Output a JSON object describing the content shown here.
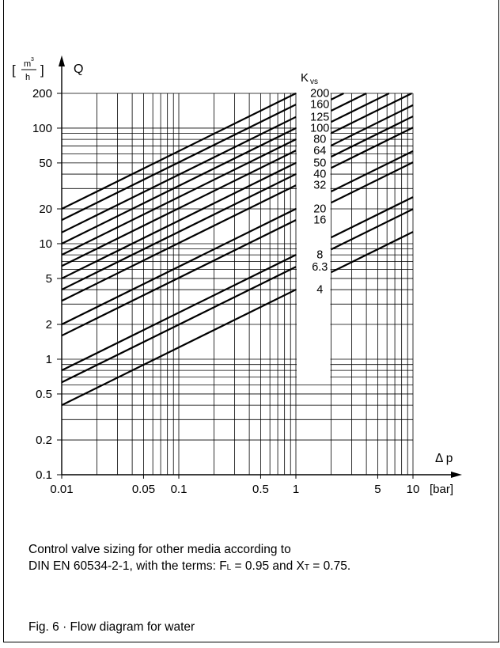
{
  "chart_data": {
    "type": "line",
    "x_scale": "log",
    "y_scale": "log",
    "xlim": [
      0.01,
      10
    ],
    "ylim": [
      0.1,
      200
    ],
    "grid": true,
    "legend": "none",
    "y_unit_prefix": "[",
    "y_unit_numerator": "m",
    "y_unit_sup": "3",
    "y_unit_denominator": "h",
    "y_unit_suffix": "]",
    "ylabel": "Q",
    "xlabel": "Δ p",
    "x_unit": "[bar]",
    "series_label_main": "K",
    "series_label_sub": "vs",
    "x_ticks": [
      {
        "value": 0.01,
        "label": "0.01"
      },
      {
        "value": 0.05,
        "label": "0.05"
      },
      {
        "value": 0.1,
        "label": "0.1"
      },
      {
        "value": 0.5,
        "label": "0.5"
      },
      {
        "value": 1,
        "label": "1"
      },
      {
        "value": 5,
        "label": "5"
      },
      {
        "value": 10,
        "label": "10"
      }
    ],
    "y_ticks": [
      {
        "value": 200,
        "label": "200"
      },
      {
        "value": 100,
        "label": "100"
      },
      {
        "value": 50,
        "label": "50"
      },
      {
        "value": 20,
        "label": "20"
      },
      {
        "value": 10,
        "label": "10"
      },
      {
        "value": 5,
        "label": "5"
      },
      {
        "value": 2,
        "label": "2"
      },
      {
        "value": 1,
        "label": "1"
      },
      {
        "value": 0.5,
        "label": "0.5"
      },
      {
        "value": 0.2,
        "label": "0.2"
      },
      {
        "value": 0.1,
        "label": "0.1"
      }
    ],
    "gap_dp_range": [
      1,
      2
    ],
    "series": [
      {
        "kvs": 200,
        "label": "200"
      },
      {
        "kvs": 160,
        "label": "160"
      },
      {
        "kvs": 125,
        "label": "125"
      },
      {
        "kvs": 100,
        "label": "100"
      },
      {
        "kvs": 80,
        "label": "80"
      },
      {
        "kvs": 64,
        "label": "64"
      },
      {
        "kvs": 50,
        "label": "50"
      },
      {
        "kvs": 40,
        "label": "40"
      },
      {
        "kvs": 32,
        "label": "32"
      },
      {
        "kvs": 20,
        "label": "20"
      },
      {
        "kvs": 16,
        "label": "16"
      },
      {
        "kvs": 8,
        "label": "8"
      },
      {
        "kvs": 6.3,
        "label": "6.3"
      },
      {
        "kvs": 4,
        "label": "4"
      }
    ]
  },
  "note": {
    "line1": "Control valve sizing for other media according to",
    "line2_a": "DIN EN 60534-2-1, with the terms: F",
    "line2_sub1": "L",
    "line2_b": " = 0.95 and X",
    "line2_sub2": "T",
    "line2_c": " = 0.75."
  },
  "caption": "Fig. 6 · Flow diagram for water"
}
